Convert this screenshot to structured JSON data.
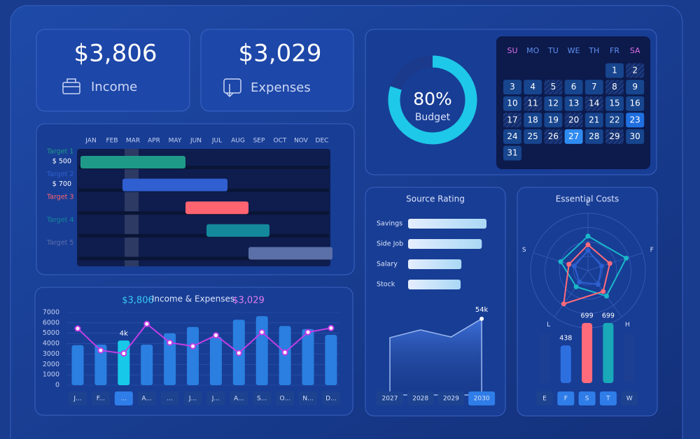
{
  "income": {
    "value": "$3,806",
    "label": "Income"
  },
  "expenses": {
    "value": "$3,029",
    "label": "Expenses"
  },
  "budget": {
    "type": "donut",
    "value": 80,
    "value_label": "80%",
    "label": "Budget",
    "color": "#1ec8e8"
  },
  "calendar": {
    "weekdays": [
      "SU",
      "MO",
      "TU",
      "WE",
      "TH",
      "FR",
      "SA"
    ],
    "weeks": [
      [
        null,
        null,
        null,
        null,
        null,
        1,
        2
      ],
      [
        3,
        4,
        5,
        6,
        7,
        8,
        9
      ],
      [
        10,
        11,
        12,
        13,
        14,
        15,
        16
      ],
      [
        17,
        18,
        19,
        20,
        21,
        22,
        23
      ],
      [
        24,
        25,
        26,
        27,
        28,
        29,
        30
      ],
      [
        31,
        null,
        null,
        null,
        null,
        null,
        null
      ]
    ],
    "highlighted": [
      23,
      27
    ]
  },
  "gantt": {
    "months": [
      "JAN",
      "FEB",
      "MAR",
      "APR",
      "MAY",
      "JUN",
      "JUL",
      "AUG",
      "SEP",
      "OCT",
      "NOV",
      "DEC"
    ],
    "current_month": 3,
    "tasks": [
      {
        "name": "Target 1",
        "amount": "$ 500",
        "start": 1,
        "end": 5,
        "color": "#1f9a88"
      },
      {
        "name": "Target 2",
        "amount": "$ 700",
        "start": 3,
        "end": 7,
        "color": "#2f5fd0"
      },
      {
        "name": "Target 3",
        "amount": null,
        "start": 6,
        "end": 8,
        "color": "#ff6470"
      },
      {
        "name": "Target 4",
        "amount": null,
        "start": 7,
        "end": 9,
        "color": "#14899c"
      },
      {
        "name": "Target 5",
        "amount": null,
        "start": 9,
        "end": 12,
        "color": "#5b6fa8"
      }
    ]
  },
  "income_expenses": {
    "type": "bar-line",
    "income_label": "$3,806",
    "title": "Income & Expenses",
    "expenses_label": "$3,029",
    "categories": [
      "J...",
      "F...",
      "...",
      "A...",
      "...",
      "J...",
      "J...",
      "A...",
      "S...",
      "O...",
      "N...",
      "D..."
    ],
    "selected": 2,
    "series": [
      {
        "color": "#2a7fe0",
        "values": [
          3850,
          3900,
          4300,
          3900,
          5000,
          5600,
          4650,
          6300,
          6650,
          5700,
          5400,
          4850
        ],
        "value_labels": [
          null,
          null,
          "4k",
          null,
          null,
          null,
          null,
          null,
          null,
          null,
          null,
          null
        ]
      },
      {
        "color": "#c23ee6",
        "values": [
          5450,
          3350,
          3050,
          5900,
          4100,
          3750,
          4800,
          3100,
          5100,
          3150,
          5100,
          5500
        ]
      }
    ],
    "ylim": [
      0,
      7000
    ],
    "yticks": [
      0,
      1000,
      2000,
      3000,
      4000,
      5000,
      6000,
      7000
    ]
  },
  "source_rating": {
    "type": "bar",
    "title": "Source Rating",
    "categories": [
      "Savings",
      "Side Job",
      "Salary",
      "Stock"
    ],
    "values": [
      100,
      94,
      68,
      67
    ]
  },
  "source_trend": {
    "type": "area",
    "categories": [
      "2027",
      "2028",
      "2029",
      "2030"
    ],
    "values": [
      40600,
      46100,
      41100,
      54000
    ],
    "value_labels": [
      null,
      null,
      null,
      "54k"
    ],
    "selected": 3
  },
  "essential_costs": {
    "type": "radar",
    "title": "Essential Costs",
    "axes": [
      "E",
      "F",
      "H",
      "L",
      "S"
    ],
    "rlim": [
      0,
      100
    ],
    "series": [
      {
        "color": "#19b8c8",
        "values": [
          60,
          70,
          55,
          35,
          50
        ]
      },
      {
        "color": "#ff6b7a",
        "values": [
          45,
          40,
          45,
          72,
          35
        ]
      },
      {
        "color": "#2e5fd0",
        "values": [
          35,
          25,
          30,
          25,
          25
        ]
      }
    ]
  },
  "essential_bars": {
    "type": "bar",
    "categories": [
      "E",
      "F",
      "S",
      "T",
      "W"
    ],
    "values": [
      570,
      438,
      699,
      699,
      575
    ],
    "value_labels": [
      null,
      "438",
      "699",
      "699",
      null
    ],
    "colors": [
      "#1d3f93",
      "#2e6fe0",
      "#ff6b7a",
      "#19a9b8",
      "#1d3f93"
    ],
    "selected": [
      1,
      2,
      3
    ]
  }
}
